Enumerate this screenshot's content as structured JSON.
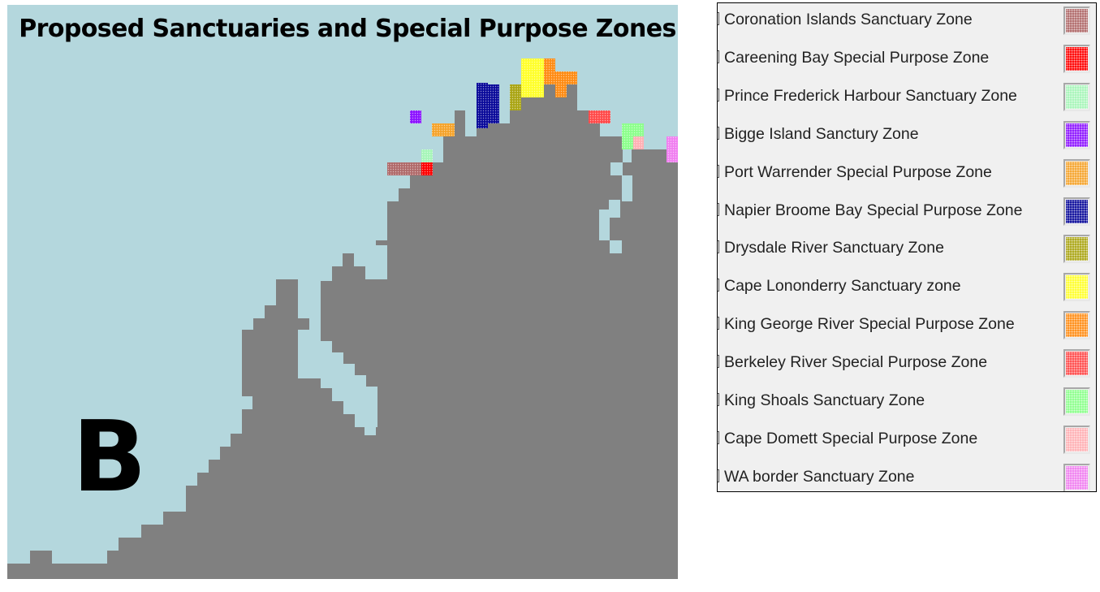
{
  "map": {
    "title": "Proposed Sanctuaries and Special Purpose Zones",
    "panel_letter": "B",
    "colors": {
      "sea": "#b4d7dd",
      "land": "#808080"
    }
  },
  "legend": {
    "items": [
      {
        "label": "Coronation Islands Sanctuary Zone",
        "color": "#b06a6a"
      },
      {
        "label": "Careening Bay Special Purpose Zone",
        "color": "#ff0000"
      },
      {
        "label": "Prince Frederick Harbour Sanctuary Zone",
        "color": "#a6f5b8"
      },
      {
        "label": "Bigge Island Sanctury Zone",
        "color": "#8b12ff"
      },
      {
        "label": "Port Warrender Special Purpose Zone",
        "color": "#f5a32a"
      },
      {
        "label": "Napier Broome Bay Special Purpose Zone",
        "color": "#0a0a9a"
      },
      {
        "label": "Drysdale River Sanctuary Zone",
        "color": "#aaa514"
      },
      {
        "label": "Cape Lononderry Sanctuary zone",
        "color": "#ffff2a"
      },
      {
        "label": "King George River Special Purpose Zone",
        "color": "#ff8c14"
      },
      {
        "label": "Berkeley River Special Purpose Zone",
        "color": "#ff4a4a"
      },
      {
        "label": "King Shoals Sanctuary Zone",
        "color": "#8cff8c"
      },
      {
        "label": "Cape Domett Special Purpose Zone",
        "color": "#ffb0b4"
      },
      {
        "label": "WA border Sanctuary Zone",
        "color": "#f080f0"
      }
    ]
  }
}
